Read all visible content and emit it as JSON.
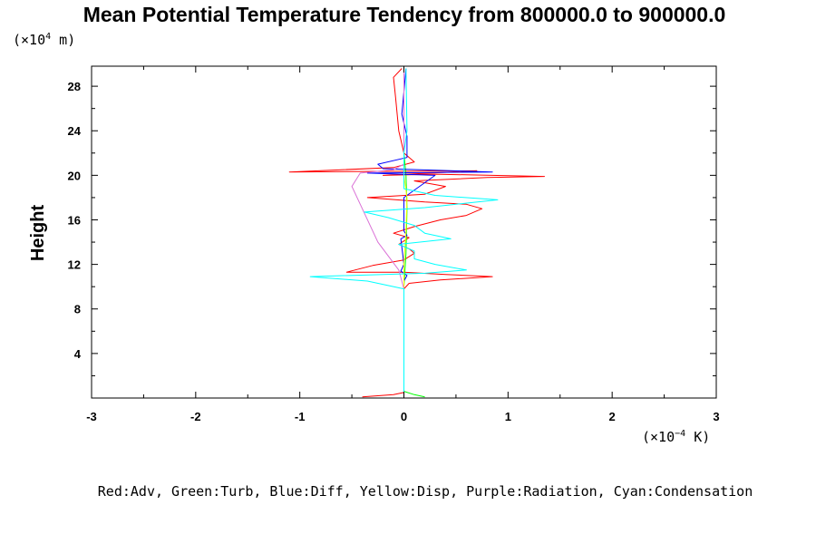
{
  "chart_data": {
    "type": "line",
    "title": "Mean Potential Temperature Tendency from 800000.0 to 900000.0",
    "ylabel": "Height",
    "y_unit_prefix": "(×10",
    "y_unit_exp": "4",
    "y_unit_suffix": " m)",
    "x_unit_prefix": "(×10",
    "x_unit_exp": "−4",
    "x_unit_suffix": " K)",
    "xlim": [
      -3,
      3
    ],
    "ylim": [
      0,
      29.8
    ],
    "x_ticks": [
      -3,
      -2,
      -1,
      0,
      1,
      2,
      3
    ],
    "x_tick_labels": [
      "-3",
      "-2",
      "-1",
      "0",
      "1",
      "2",
      "3"
    ],
    "y_ticks": [
      4,
      8,
      12,
      16,
      20,
      24,
      28
    ],
    "y_tick_labels": [
      "4",
      "8",
      "12",
      "16",
      "20",
      "24",
      "28"
    ],
    "legend_text": "Red:Adv, Green:Turb, Blue:Diff, Yellow:Disp, Purple:Radiation, Cyan:Condensation",
    "legend_position": "bottom",
    "grid": false,
    "series": [
      {
        "color": "#ff0000",
        "points": [
          [
            -0.4,
            0.1
          ],
          [
            -0.1,
            0.3
          ],
          [
            0,
            0.5
          ],
          [
            0,
            9.8
          ],
          [
            0.05,
            10.3
          ],
          [
            0.35,
            10.6
          ],
          [
            0.85,
            10.9
          ],
          [
            0.4,
            11.1
          ],
          [
            0,
            11.3
          ],
          [
            -0.55,
            11.3
          ],
          [
            -0.3,
            11.9
          ],
          [
            0,
            12.4
          ],
          [
            0.1,
            13.0
          ],
          [
            0.05,
            13.4
          ],
          [
            -0.05,
            13.8
          ],
          [
            0.05,
            14.4
          ],
          [
            -0.1,
            14.8
          ],
          [
            0.1,
            15.4
          ],
          [
            0.35,
            16.0
          ],
          [
            0.6,
            16.4
          ],
          [
            0.75,
            17.0
          ],
          [
            0.6,
            17.4
          ],
          [
            0.2,
            17.6
          ],
          [
            -0.35,
            18.0
          ],
          [
            0.2,
            18.3
          ],
          [
            0.4,
            19.0
          ],
          [
            0.1,
            19.5
          ],
          [
            0.8,
            19.8
          ],
          [
            1.35,
            19.9
          ],
          [
            0.3,
            20.1
          ],
          [
            -0.2,
            20.0
          ],
          [
            0.7,
            20.4
          ],
          [
            -1.1,
            20.3
          ],
          [
            -0.1,
            20.7
          ],
          [
            0.1,
            21.2
          ],
          [
            0,
            22.0
          ],
          [
            -0.05,
            24.0
          ],
          [
            -0.08,
            27.0
          ],
          [
            -0.1,
            28.8
          ],
          [
            -0.02,
            29.6
          ]
        ]
      },
      {
        "color": "#00ff00",
        "points": [
          [
            0.2,
            0.1
          ],
          [
            0.1,
            0.3
          ],
          [
            0,
            0.6
          ],
          [
            0,
            10.0
          ],
          [
            0.02,
            13.0
          ],
          [
            0.03,
            17.0
          ],
          [
            0.02,
            20.0
          ],
          [
            0,
            22.0
          ],
          [
            0,
            29.6
          ]
        ]
      },
      {
        "color": "#0000ff",
        "points": [
          [
            0,
            0.5
          ],
          [
            0,
            10.5
          ],
          [
            0.03,
            11.0
          ],
          [
            -0.03,
            11.4
          ],
          [
            0,
            12.0
          ],
          [
            -0.03,
            14.3
          ],
          [
            0.03,
            14.6
          ],
          [
            0,
            15.0
          ],
          [
            0,
            18.0
          ],
          [
            0.3,
            20.0
          ],
          [
            -0.35,
            20.2
          ],
          [
            0.85,
            20.3
          ],
          [
            -0.2,
            20.6
          ],
          [
            -0.25,
            21.0
          ],
          [
            0.03,
            21.6
          ],
          [
            0.03,
            23.5
          ],
          [
            -0.02,
            25.5
          ],
          [
            0,
            27.5
          ],
          [
            0.02,
            29.6
          ]
        ]
      },
      {
        "color": "#ffff00",
        "points": [
          [
            0,
            0.5
          ],
          [
            0,
            12.0
          ],
          [
            0.02,
            15.0
          ],
          [
            0.03,
            18.0
          ],
          [
            0,
            20.0
          ],
          [
            0,
            29.0
          ]
        ]
      },
      {
        "color": "#da70d6",
        "points": [
          [
            0,
            9.8
          ],
          [
            -0.05,
            11.5
          ],
          [
            -0.25,
            14.0
          ],
          [
            -0.3,
            15.0
          ],
          [
            -0.4,
            17.0
          ],
          [
            -0.5,
            19.0
          ],
          [
            -0.42,
            20.2
          ],
          [
            -0.1,
            20.5
          ],
          [
            0,
            21.0
          ],
          [
            0,
            29.6
          ]
        ]
      },
      {
        "color": "#00ffff",
        "points": [
          [
            0,
            0.3
          ],
          [
            0,
            9.8
          ],
          [
            -0.35,
            10.5
          ],
          [
            -0.9,
            10.9
          ],
          [
            0.2,
            11.2
          ],
          [
            0.6,
            11.5
          ],
          [
            0.3,
            12.0
          ],
          [
            0.1,
            12.5
          ],
          [
            0.1,
            13.2
          ],
          [
            -0.05,
            13.8
          ],
          [
            0.45,
            14.3
          ],
          [
            0.2,
            14.8
          ],
          [
            0.1,
            15.5
          ],
          [
            -0.15,
            16.2
          ],
          [
            -0.38,
            16.7
          ],
          [
            0.2,
            17.1
          ],
          [
            0.9,
            17.8
          ],
          [
            0.3,
            18.2
          ],
          [
            0,
            18.8
          ],
          [
            0,
            22.0
          ],
          [
            0.03,
            24.0
          ],
          [
            0.02,
            29.6
          ]
        ]
      }
    ]
  }
}
